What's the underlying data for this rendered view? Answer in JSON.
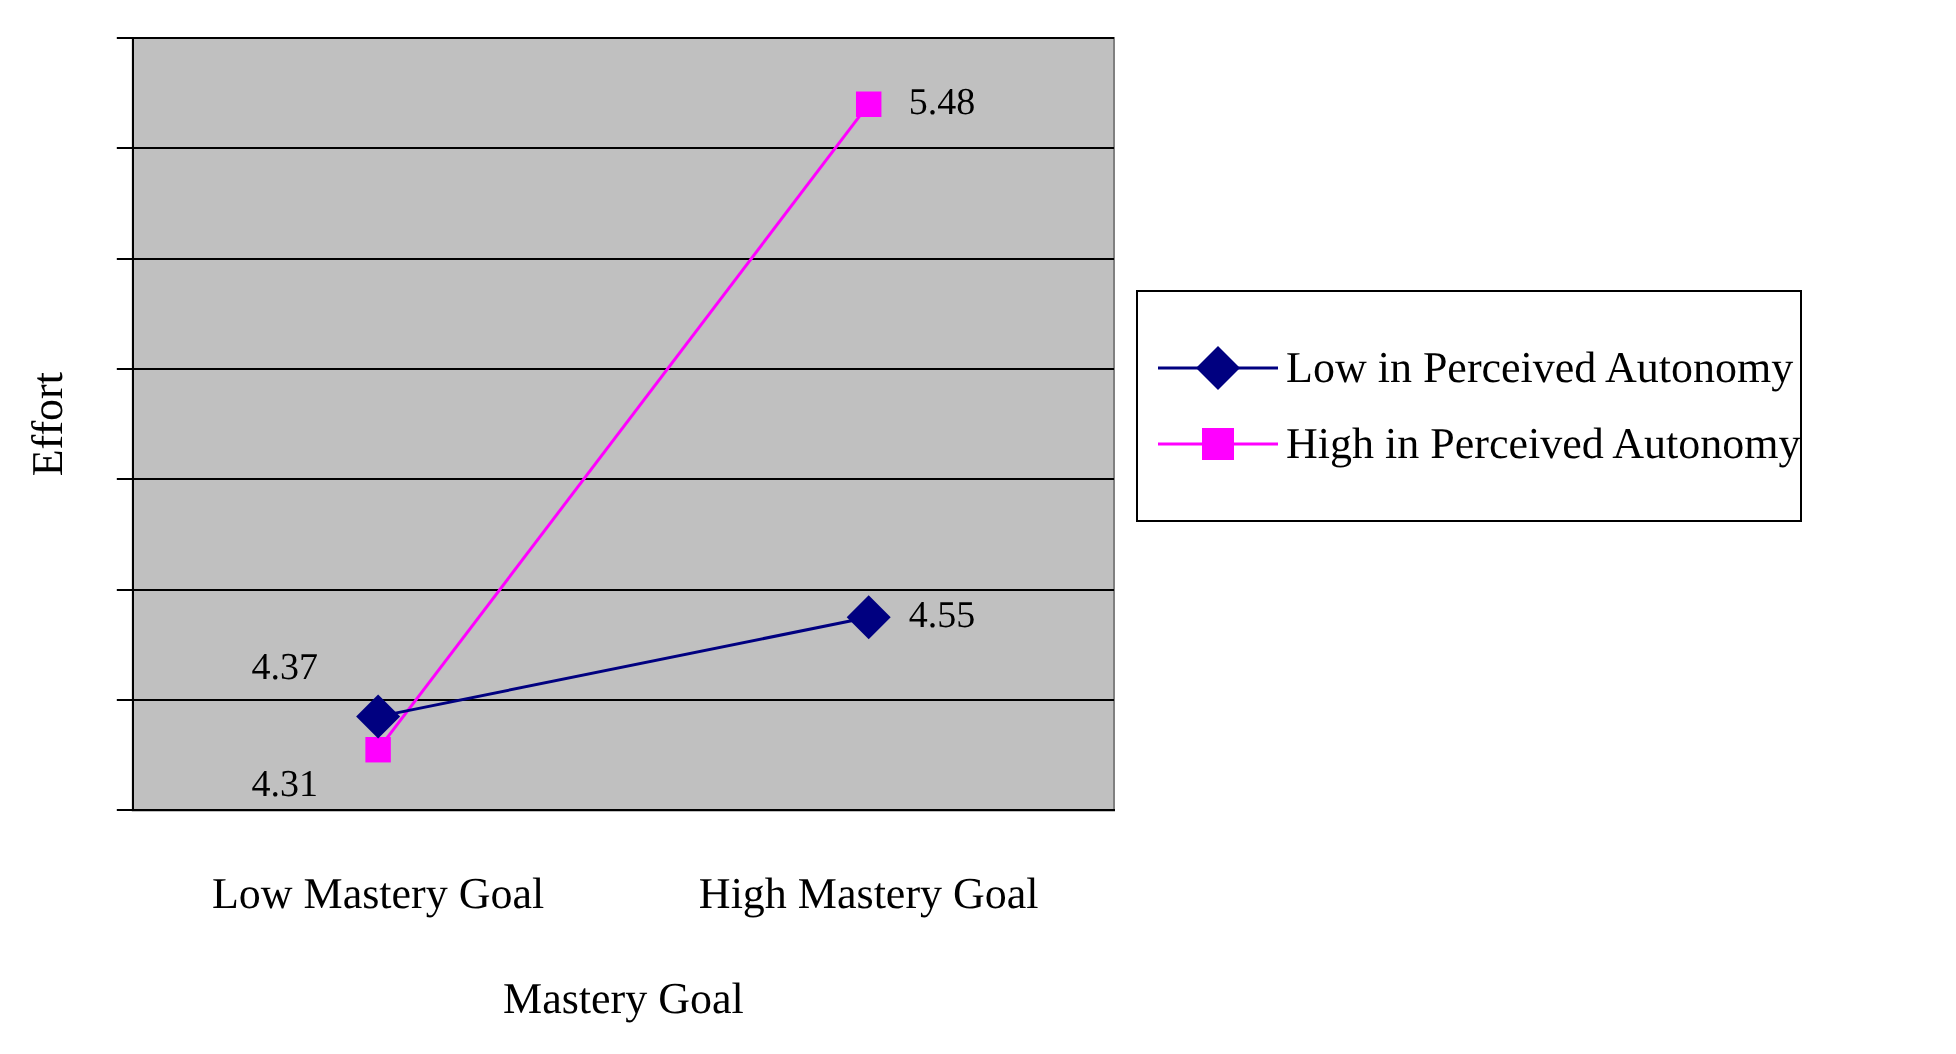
{
  "chart_data": {
    "type": "line",
    "xlabel": "Mastery Goal",
    "ylabel": "Effort",
    "categories": [
      "Low Mastery Goal",
      "High Mastery Goal"
    ],
    "series": [
      {
        "name": "Low in Perceived Autonomy",
        "color": "#000080",
        "values": [
          4.37,
          4.55
        ],
        "marker": "diamond"
      },
      {
        "name": "High in Perceived Autonomy",
        "color": "#ff00ff",
        "values": [
          4.31,
          5.48
        ],
        "marker": "square"
      }
    ],
    "ylim": [
      4.2,
      5.6
    ],
    "yticks": [
      {
        "value": 4.2,
        "label": null
      },
      {
        "value": 4.4,
        "label": null
      },
      {
        "value": 4.6,
        "label": null
      },
      {
        "value": 4.8,
        "label": null
      },
      {
        "value": 5.0,
        "label": null
      },
      {
        "value": 5.2,
        "label": null
      },
      {
        "value": 5.4,
        "label": null
      },
      {
        "value": 5.6,
        "label": null
      }
    ],
    "grid": "y",
    "legend": "right",
    "data_labels": true,
    "tick_labels": "x",
    "line_style": "solid"
  }
}
